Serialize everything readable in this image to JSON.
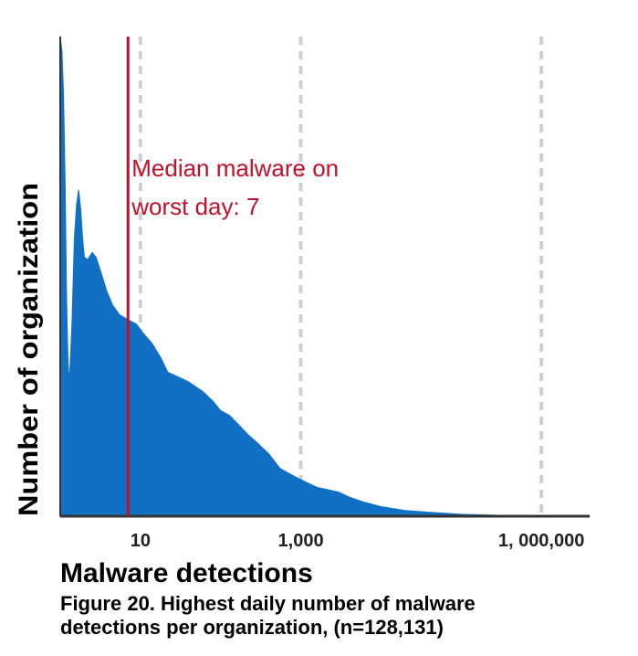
{
  "chart_data": {
    "type": "area",
    "title": "",
    "xlabel": "Malware detections",
    "ylabel": "Number of organization",
    "x_scale": "log",
    "xlim": [
      1,
      4000000
    ],
    "ylim": [
      0,
      1
    ],
    "x_ticks": [
      {
        "value": 10,
        "label": "10"
      },
      {
        "value": 1000,
        "label": "1,000"
      },
      {
        "value": 1000000,
        "label": "1, 000,000"
      }
    ],
    "grid": "vertical-dashed",
    "series": [
      {
        "color": "#1170c4",
        "points": [
          [
            1,
            1.0
          ],
          [
            1.05,
            0.97
          ],
          [
            1.1,
            0.88
          ],
          [
            1.15,
            0.7
          ],
          [
            1.2,
            0.45
          ],
          [
            1.25,
            0.32
          ],
          [
            1.3,
            0.28
          ],
          [
            1.4,
            0.4
          ],
          [
            1.5,
            0.58
          ],
          [
            1.6,
            0.65
          ],
          [
            1.7,
            0.68
          ],
          [
            1.8,
            0.64
          ],
          [
            1.9,
            0.58
          ],
          [
            2,
            0.54
          ],
          [
            2.2,
            0.535
          ],
          [
            2.5,
            0.55
          ],
          [
            2.8,
            0.54
          ],
          [
            3.2,
            0.51
          ],
          [
            3.8,
            0.47
          ],
          [
            4.5,
            0.44
          ],
          [
            5.5,
            0.42
          ],
          [
            7,
            0.41
          ],
          [
            9,
            0.4
          ],
          [
            11,
            0.38
          ],
          [
            14,
            0.36
          ],
          [
            18,
            0.33
          ],
          [
            22,
            0.3
          ],
          [
            30,
            0.29
          ],
          [
            40,
            0.28
          ],
          [
            60,
            0.26
          ],
          [
            80,
            0.24
          ],
          [
            100,
            0.22
          ],
          [
            130,
            0.21
          ],
          [
            170,
            0.19
          ],
          [
            220,
            0.17
          ],
          [
            300,
            0.15
          ],
          [
            400,
            0.13
          ],
          [
            550,
            0.1
          ],
          [
            700,
            0.09
          ],
          [
            900,
            0.08
          ],
          [
            1200,
            0.07
          ],
          [
            1600,
            0.06
          ],
          [
            2200,
            0.055
          ],
          [
            3000,
            0.05
          ],
          [
            4000,
            0.04
          ],
          [
            6000,
            0.03
          ],
          [
            10000,
            0.02
          ],
          [
            20000,
            0.012
          ],
          [
            50000,
            0.007
          ],
          [
            100000,
            0.004
          ],
          [
            300000,
            0.002
          ],
          [
            1000000,
            0.001
          ],
          [
            4000000,
            0.0
          ]
        ]
      }
    ],
    "annotations": [
      {
        "x": 7,
        "color": "#c0102a",
        "lines": [
          "Median malware on",
          "worst day: 7"
        ]
      }
    ]
  },
  "caption": {
    "line1": "Figure 20.  Highest daily number of malware",
    "line2": "detections per organization, (n=128,131)"
  }
}
